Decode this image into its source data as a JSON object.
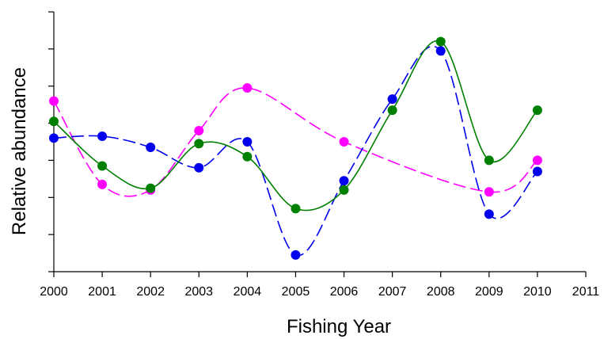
{
  "chart_data": {
    "type": "line",
    "title": "",
    "xlabel": "Fishing Year",
    "ylabel": "Relative abundance",
    "xlim": [
      2000,
      2011
    ],
    "x_ticks": [
      "2000",
      "2001",
      "2002",
      "2003",
      "2004",
      "2005",
      "2006",
      "2007",
      "2008",
      "2009",
      "2010",
      "2011"
    ],
    "ylim": [
      0,
      7
    ],
    "y_ticks": [
      0,
      1,
      2,
      3,
      4,
      5,
      6,
      7
    ],
    "y_tick_labels_shown": false,
    "grid": false,
    "legend": "none",
    "series": [
      {
        "color": "#ff00ff",
        "line_style": "dashed",
        "x": [
          2000,
          2001,
          2002,
          2003,
          2004,
          2006,
          2009,
          2010
        ],
        "y": [
          4.6,
          2.35,
          2.2,
          3.8,
          4.95,
          3.5,
          2.15,
          3.0
        ]
      },
      {
        "color": "#0000ee",
        "line_style": "dashed",
        "x": [
          2000,
          2001,
          2002,
          2003,
          2004,
          2005,
          2006,
          2007,
          2008,
          2009,
          2010
        ],
        "y": [
          3.6,
          3.65,
          3.35,
          2.8,
          3.5,
          0.45,
          2.45,
          4.65,
          5.95,
          1.55,
          2.7
        ]
      },
      {
        "color": "#008000",
        "line_style": "solid",
        "x": [
          2000,
          2001,
          2002,
          2003,
          2004,
          2005,
          2006,
          2007,
          2008,
          2009,
          2010
        ],
        "y": [
          4.05,
          2.85,
          2.25,
          3.45,
          3.1,
          1.7,
          2.2,
          4.35,
          6.2,
          3.0,
          4.35
        ]
      }
    ]
  }
}
